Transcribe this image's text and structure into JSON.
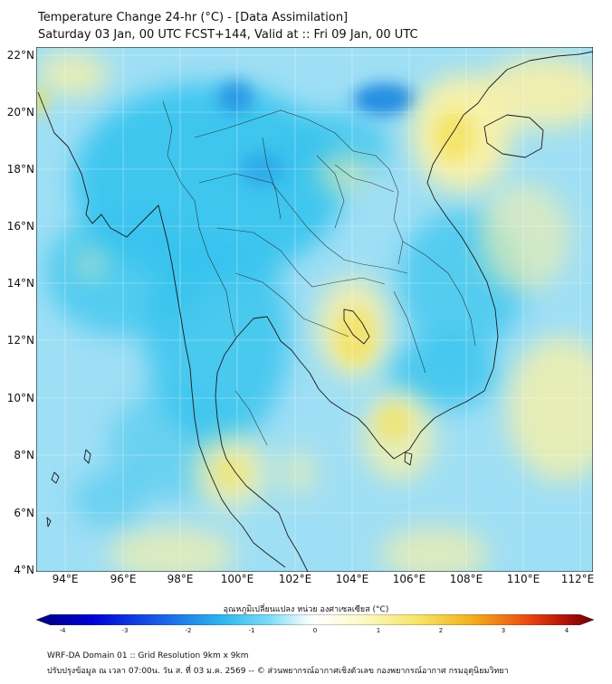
{
  "title": {
    "line1": "Temperature Change 24-hr (°C) - [Data Assimilation]",
    "line2": "Saturday 03 Jan, 00 UTC FCST+144, Valid at :: Fri 09 Jan, 00 UTC"
  },
  "map": {
    "lat_labels": [
      "22°N",
      "20°N",
      "18°N",
      "16°N",
      "14°N",
      "12°N",
      "10°N",
      "8°N",
      "6°N",
      "4°N"
    ],
    "lon_labels": [
      "94°E",
      "96°E",
      "98°E",
      "100°E",
      "102°E",
      "104°E",
      "106°E",
      "108°E",
      "110°E",
      "112°E"
    ],
    "field_colors": {
      "base": "#9fdff5",
      "cool": "#35c3ee",
      "cold": "#1a86e0",
      "warm": "#f7f0a8",
      "hot": "#f3df55"
    },
    "coastline_color": "#1a1a1a"
  },
  "colorbar": {
    "title": "อุณหภูมิเปลี่ยนแปลง หน่วย องศาเซลเซียส (°C)",
    "ticks": [
      "-4",
      "-3",
      "-2",
      "-1",
      "0",
      "1",
      "2",
      "3",
      "4"
    ],
    "range": [
      -4,
      4
    ],
    "colors": [
      "#00007a",
      "#0000d6",
      "#1a5ee6",
      "#2bb4ee",
      "#7fdcf7",
      "#eaf9fc",
      "#ffffff",
      "#fdf9cc",
      "#f6e56a",
      "#f2b21d",
      "#ec4a10",
      "#b01008",
      "#6b0000"
    ]
  },
  "footer": {
    "line1": "WRF-DA Domain 01 :: Grid Resolution 9km x 9km",
    "line2": "ปรับปรุงข้อมูล ณ เวลา 07:00น. วัน ส. ที่ 03 ม.ค. 2569 -- © ส่วนพยากรณ์อากาศเชิงตัวเลข กองพยากรณ์อากาศ กรมอุตุนิยมวิทยา"
  }
}
